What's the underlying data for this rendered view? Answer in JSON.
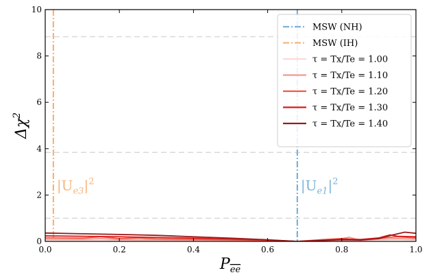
{
  "chart_data": {
    "type": "line",
    "xlabel": "P_ee",
    "xlabel_main": "P",
    "xlabel_sub": "ee",
    "ylabel": "Δχ²",
    "ylabel_main": "Δχ",
    "ylabel_sup": "2",
    "xlim": [
      0.0,
      1.0
    ],
    "ylim": [
      0,
      10
    ],
    "xticks": [
      0.0,
      0.2,
      0.4,
      0.6,
      0.8,
      1.0
    ],
    "xtick_labels": [
      "0.0",
      "0.2",
      "0.4",
      "0.6",
      "0.8",
      "1.0"
    ],
    "yticks": [
      0,
      2,
      4,
      6,
      8,
      10
    ],
    "ytick_labels": [
      "0",
      "2",
      "4",
      "6",
      "8",
      "10"
    ],
    "h_reference_lines": [
      1.0,
      3.84,
      8.83
    ],
    "legend_position": "top-right",
    "vlines": [
      {
        "name": "MSW (NH)",
        "x": 0.68,
        "color": "#78b3d9",
        "annotation_main": "|U",
        "annotation_sub": "e1",
        "annotation_end": "|",
        "annotation_sup": "2",
        "annotation_y": 2.2
      },
      {
        "name": "MSW (IH)",
        "x": 0.022,
        "color": "#f7b47a",
        "annotation_main": "|U",
        "annotation_sub": "e3",
        "annotation_end": "|",
        "annotation_sup": "2",
        "annotation_y": 2.2
      }
    ],
    "series": [
      {
        "name": "τ = Tx/Te = 1.00",
        "color": "#fcd8d5",
        "x": [
          0.0,
          0.1,
          0.2,
          0.3,
          0.4,
          0.5,
          0.6,
          0.68,
          0.75,
          0.8,
          0.85,
          0.9,
          0.95,
          1.0
        ],
        "y": [
          0.05,
          0.05,
          0.04,
          0.04,
          0.03,
          0.03,
          0.02,
          0.0,
          0.02,
          0.05,
          0.04,
          0.06,
          0.08,
          0.06
        ]
      },
      {
        "name": "τ = Tx/Te = 1.10",
        "color": "#f4978e",
        "x": [
          0.0,
          0.1,
          0.15,
          0.2,
          0.3,
          0.4,
          0.5,
          0.6,
          0.68,
          0.75,
          0.8,
          0.82,
          0.85,
          0.9,
          0.95,
          1.0
        ],
        "y": [
          0.1,
          0.09,
          0.12,
          0.08,
          0.07,
          0.06,
          0.05,
          0.03,
          0.0,
          0.06,
          0.12,
          0.18,
          0.05,
          0.1,
          0.12,
          0.1
        ]
      },
      {
        "name": "τ = Tx/Te = 1.20",
        "color": "#ee5a48",
        "x": [
          0.0,
          0.1,
          0.15,
          0.2,
          0.25,
          0.3,
          0.4,
          0.5,
          0.6,
          0.68,
          0.75,
          0.8,
          0.85,
          0.9,
          0.95,
          1.0
        ],
        "y": [
          0.16,
          0.14,
          0.2,
          0.12,
          0.15,
          0.11,
          0.09,
          0.07,
          0.04,
          0.0,
          0.08,
          0.12,
          0.08,
          0.14,
          0.2,
          0.15
        ]
      },
      {
        "name": "τ = Tx/Te = 1.30",
        "color": "#d91b1b",
        "x": [
          0.0,
          0.1,
          0.2,
          0.3,
          0.4,
          0.5,
          0.6,
          0.68,
          0.75,
          0.8,
          0.85,
          0.9,
          0.93,
          0.95,
          1.0
        ],
        "y": [
          0.24,
          0.22,
          0.2,
          0.17,
          0.14,
          0.1,
          0.06,
          0.0,
          0.05,
          0.1,
          0.08,
          0.15,
          0.28,
          0.22,
          0.2
        ]
      },
      {
        "name": "τ = Tx/Te = 1.40",
        "color": "#9c1717",
        "x": [
          0.0,
          0.1,
          0.2,
          0.3,
          0.4,
          0.5,
          0.6,
          0.68,
          0.75,
          0.8,
          0.85,
          0.9,
          0.93,
          0.97,
          1.0
        ],
        "y": [
          0.36,
          0.33,
          0.3,
          0.26,
          0.2,
          0.14,
          0.07,
          0.0,
          0.04,
          0.07,
          0.06,
          0.12,
          0.25,
          0.4,
          0.35
        ]
      }
    ]
  }
}
